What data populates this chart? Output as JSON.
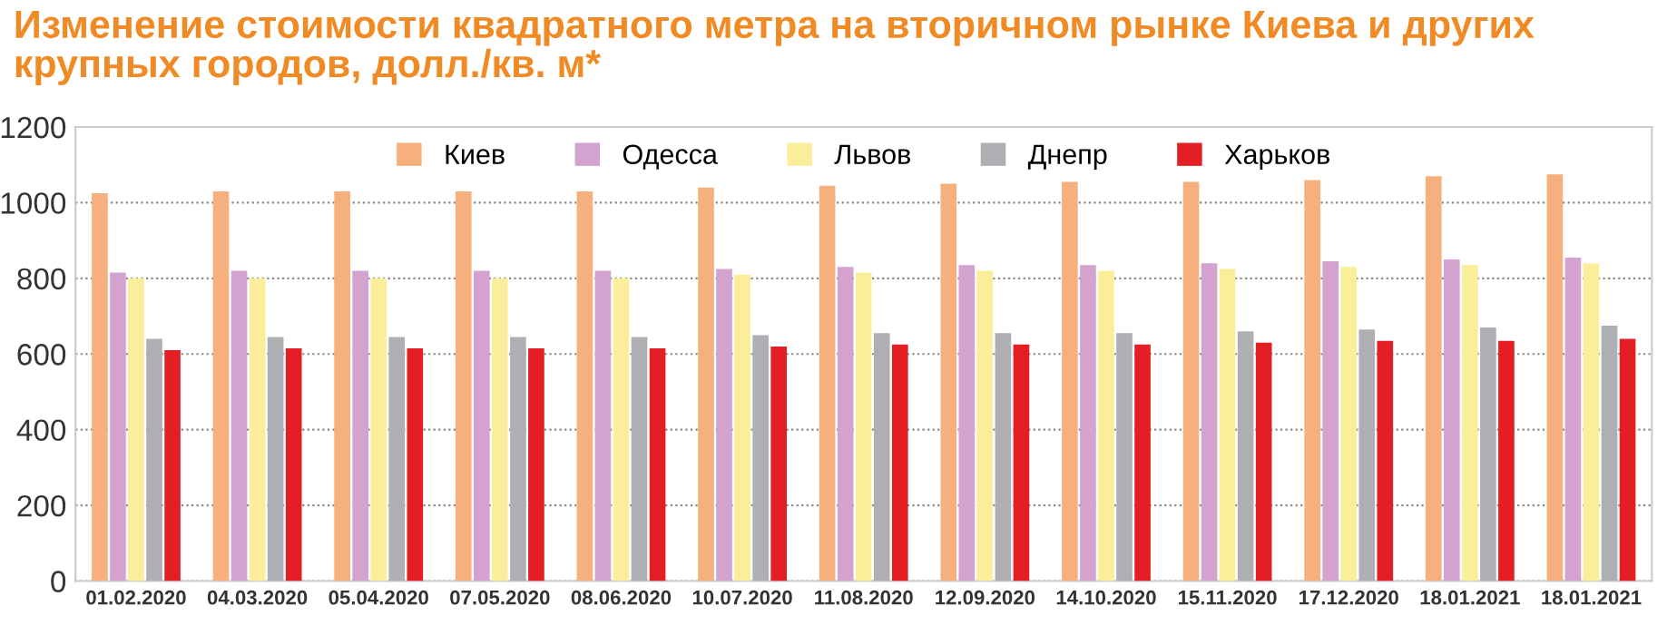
{
  "chart_data": {
    "type": "bar",
    "title": "Изменение стоимости квадратного метра на вторичном рынке Киева и других\nкрупных городов, долл./кв. м*",
    "categories": [
      "01.02.2020",
      "04.03.2020",
      "05.04.2020",
      "07.05.2020",
      "08.06.2020",
      "10.07.2020",
      "11.08.2020",
      "12.09.2020",
      "14.10.2020",
      "15.11.2020",
      "17.12.2020",
      "18.01.2021",
      "18.01.2021"
    ],
    "series": [
      {
        "name": "Киев",
        "color": "#f5b07d",
        "values": [
          1025,
          1030,
          1030,
          1030,
          1030,
          1040,
          1045,
          1050,
          1055,
          1055,
          1060,
          1070,
          1075
        ]
      },
      {
        "name": "Одесса",
        "color": "#d4a2cf",
        "values": [
          815,
          820,
          820,
          820,
          820,
          825,
          830,
          835,
          835,
          840,
          845,
          850,
          855
        ]
      },
      {
        "name": "Львов",
        "color": "#fbee9a",
        "values": [
          800,
          800,
          800,
          800,
          800,
          810,
          815,
          820,
          820,
          825,
          830,
          835,
          840
        ]
      },
      {
        "name": "Днепр",
        "color": "#aeafb3",
        "values": [
          640,
          645,
          645,
          645,
          645,
          650,
          655,
          655,
          655,
          660,
          665,
          670,
          675
        ]
      },
      {
        "name": "Харьков",
        "color": "#e31e24",
        "values": [
          610,
          615,
          615,
          615,
          615,
          620,
          625,
          625,
          625,
          630,
          635,
          635,
          640
        ]
      }
    ],
    "ylim": [
      0,
      1200
    ],
    "yticks": [
      0,
      200,
      400,
      600,
      800,
      1000,
      1200
    ],
    "grid": "y",
    "legend": "top"
  }
}
